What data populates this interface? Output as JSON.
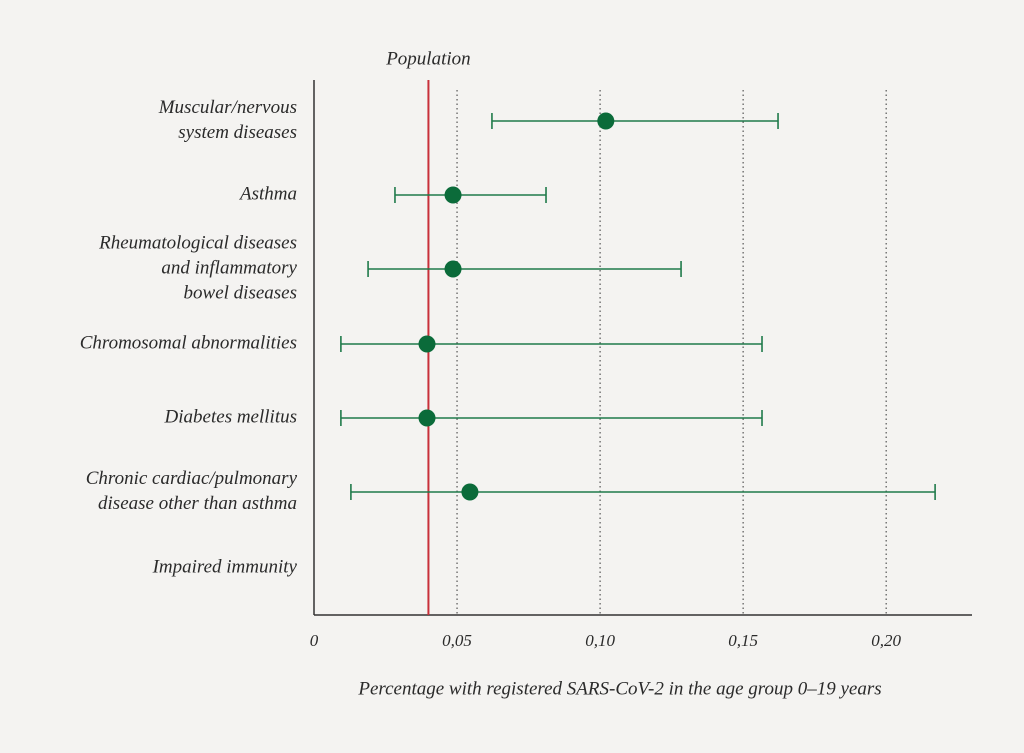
{
  "chart_data": {
    "type": "interval",
    "categories": [
      [
        "Muscular/nervous",
        "system diseases"
      ],
      [
        "Asthma"
      ],
      [
        "Rheumatological diseases",
        "and inflammatory",
        "bowel diseases"
      ],
      [
        "Chromosomal abnormalities"
      ],
      [
        "Diabetes mellitus"
      ],
      [
        "Chronic cardiac/pulmonary",
        "disease other than asthma"
      ],
      [
        "Impaired immunity"
      ]
    ],
    "values": [
      0.102,
      0.0486,
      0.0486,
      0.0395,
      0.0395,
      0.0545,
      null
    ],
    "lower": [
      0.0622,
      0.0283,
      0.0189,
      0.0094,
      0.0094,
      0.0129,
      null
    ],
    "upper": [
      0.1622,
      0.0811,
      0.1283,
      0.1566,
      0.1566,
      0.2171,
      null
    ],
    "color": "#0b6b3a",
    "xlabel": "Percentage with registered SARS-CoV-2 in the age group 0–19 years",
    "xlim": [
      0,
      0.23
    ],
    "xticks": [
      0,
      {
        "value": 0.05,
        "label": "0,05"
      },
      {
        "value": 0.1,
        "label": "0,10"
      },
      {
        "value": 0.15,
        "label": "0,15"
      },
      {
        "value": 0.2,
        "label": "0,20"
      }
    ],
    "grid": true,
    "reference_line": {
      "label": "Population",
      "value": 0.04,
      "color": "#c8303a"
    }
  }
}
